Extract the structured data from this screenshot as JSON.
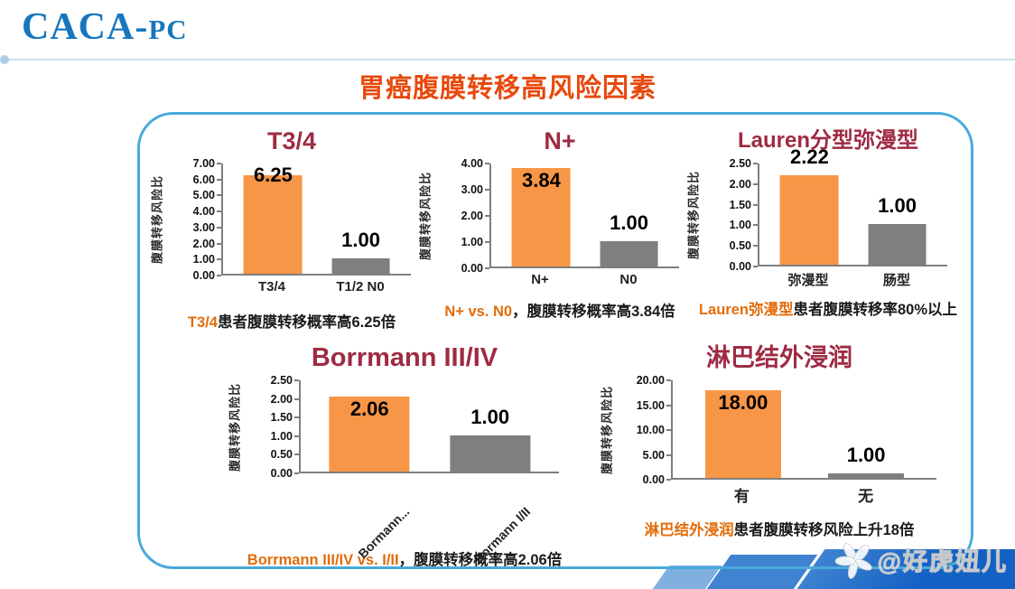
{
  "header": {
    "brand_main": "CACA-",
    "brand_sub": "PC"
  },
  "page_title": "胃癌腹膜转移高风险因素",
  "watermark": {
    "text": "@好虎妞儿",
    "icon": "flower-icon"
  },
  "colors": {
    "brand_blue": "#1777BD",
    "page_title_orange": "#E8490C",
    "chart_title_red": "#9E2B43",
    "caption_highlight_orange": "#E36C0A",
    "caption_text": "#1a1a1a",
    "bar_orange": "#F79646",
    "bar_gray": "#7F7F7F",
    "panel_border_blue": "#49A9DB",
    "axis_gray": "#7f7f7f",
    "banner_dark_blue": "#1461C4",
    "banner_mid_blue": "#3F83D1",
    "banner_light_blue": "#7FB0DF"
  },
  "chart_data": [
    {
      "type": "bar",
      "title": "T3/4",
      "ylabel": "腹膜转移风险比",
      "ylim": [
        0,
        7
      ],
      "ytick_step": 1,
      "ytick_decimals": 2,
      "grid": false,
      "legend": false,
      "categories": [
        "T3/4",
        "T1/2 N0"
      ],
      "values": [
        6.25,
        1.0
      ],
      "value_labels": [
        "6.25",
        "1.00"
      ],
      "bar_colors": [
        "#F79646",
        "#7F7F7F"
      ],
      "value_label_pos": [
        "straddle",
        "above"
      ],
      "xlabel_rotate": false,
      "caption": {
        "highlight": "T3/4",
        "rest": "患者腹膜转移概率高6.25倍"
      }
    },
    {
      "type": "bar",
      "title": "N+",
      "ylabel": "腹膜转移风险比",
      "ylim": [
        0,
        4
      ],
      "ytick_step": 1,
      "ytick_decimals": 2,
      "grid": false,
      "legend": false,
      "categories": [
        "N+",
        "N0"
      ],
      "values": [
        3.84,
        1.0
      ],
      "value_labels": [
        "3.84",
        "1.00"
      ],
      "bar_colors": [
        "#F79646",
        "#7F7F7F"
      ],
      "value_label_pos": [
        "inside",
        "above"
      ],
      "xlabel_rotate": false,
      "caption": {
        "highlight": "N+ vs. N0",
        "rest": "，腹膜转移概率高3.84倍"
      }
    },
    {
      "type": "bar",
      "title": "Lauren分型弥漫型",
      "ylabel": "腹膜转移风险比",
      "ylim": [
        0,
        2.5
      ],
      "ytick_step": 0.5,
      "ytick_decimals": 2,
      "grid": false,
      "legend": false,
      "categories": [
        "弥漫型",
        "肠型"
      ],
      "values": [
        2.22,
        1.0
      ],
      "value_labels": [
        "2.22",
        "1.00"
      ],
      "bar_colors": [
        "#F79646",
        "#7F7F7F"
      ],
      "value_label_pos": [
        "above",
        "above"
      ],
      "xlabel_rotate": false,
      "caption": {
        "highlight": "Lauren弥漫型",
        "rest": "患者腹膜转移率80%以上"
      }
    },
    {
      "type": "bar",
      "title": "Borrmann III/IV",
      "ylabel": "腹膜转移风险比",
      "ylim": [
        0,
        2.5
      ],
      "ytick_step": 0.5,
      "ytick_decimals": 2,
      "grid": false,
      "legend": false,
      "categories": [
        "Bormann...",
        "Bormann I/II"
      ],
      "values": [
        2.06,
        1.0
      ],
      "value_labels": [
        "2.06",
        "1.00"
      ],
      "bar_colors": [
        "#F79646",
        "#7F7F7F"
      ],
      "value_label_pos": [
        "inside",
        "above"
      ],
      "xlabel_rotate": true,
      "caption": {
        "highlight": "Borrmann III/IV vs. I/II",
        "rest": "，腹膜转移概率高2.06倍"
      }
    },
    {
      "type": "bar",
      "title": "淋巴结外浸润",
      "ylabel": "腹膜转移风险比",
      "ylim": [
        0,
        20
      ],
      "ytick_step": 5,
      "ytick_decimals": 2,
      "grid": false,
      "legend": false,
      "categories": [
        "有",
        "无"
      ],
      "values": [
        18.0,
        1.0
      ],
      "value_labels": [
        "18.00",
        "1.00"
      ],
      "bar_colors": [
        "#F79646",
        "#7F7F7F"
      ],
      "value_label_pos": [
        "inside",
        "above"
      ],
      "xlabel_rotate": false,
      "caption": {
        "highlight": "淋巴结外浸润",
        "rest": "患者腹膜转移风险上升18倍"
      }
    }
  ]
}
